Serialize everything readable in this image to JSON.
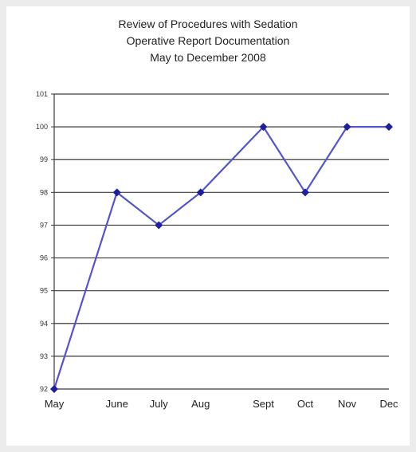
{
  "chart_data": {
    "type": "line",
    "title": [
      "Review of Procedures with Sedation",
      "Operative Report Documentation",
      "May to December 2008"
    ],
    "xlabel": "",
    "ylabel": "",
    "categories": [
      "May",
      "June",
      "July",
      "Aug",
      "Sept",
      "Oct",
      "Nov",
      "Dec"
    ],
    "x_positions": [
      0,
      1.5,
      2.5,
      3.5,
      5.0,
      6.0,
      7.0,
      8.0
    ],
    "values": [
      92,
      98,
      97,
      98,
      100,
      98,
      100,
      100
    ],
    "ylim": [
      92,
      101
    ],
    "yticks": [
      101,
      100,
      99,
      98,
      97,
      96,
      95,
      94,
      93,
      92
    ],
    "grid": true,
    "legend": "none",
    "marker": "diamond",
    "colors": {
      "line": "#5454cc",
      "marker": "#1e1e9e",
      "grid": "#3a3a3a"
    }
  }
}
